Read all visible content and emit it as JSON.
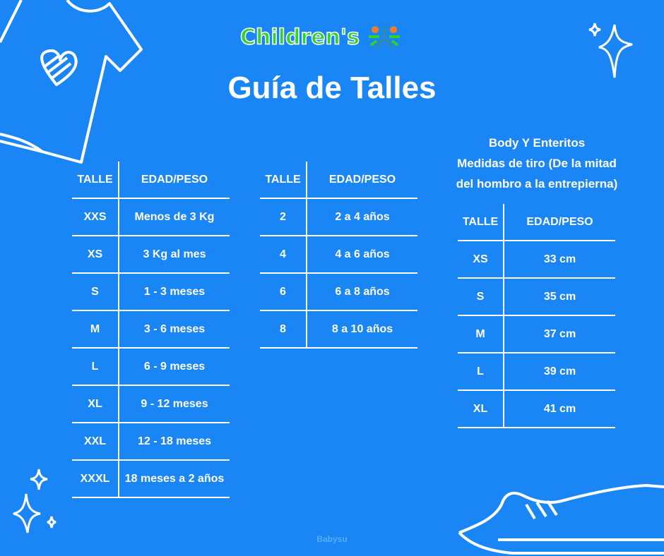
{
  "logo": {
    "text": "Children's"
  },
  "title": "Guía de Talles",
  "table1": {
    "headers": [
      "TALLE",
      "EDAD/PESO"
    ],
    "rows": [
      [
        "XXS",
        "Menos de 3 Kg"
      ],
      [
        "XS",
        "3 Kg al mes"
      ],
      [
        "S",
        "1 - 3 meses"
      ],
      [
        "M",
        "3 - 6 meses"
      ],
      [
        "L",
        "6 - 9 meses"
      ],
      [
        "XL",
        "9 - 12 meses"
      ],
      [
        "XXL",
        "12 - 18 meses"
      ],
      [
        "XXXL",
        "18 meses a 2 años"
      ]
    ]
  },
  "table2": {
    "headers": [
      "TALLE",
      "EDAD/PESO"
    ],
    "rows": [
      [
        "2",
        "2 a 4 años"
      ],
      [
        "4",
        "4 a 6 años"
      ],
      [
        "6",
        "6 a 8 años"
      ],
      [
        "8",
        "8 a 10 años"
      ]
    ]
  },
  "table3": {
    "caption": [
      "Body Y Enteritos",
      "Medidas de tiro (De la mitad",
      "del hombro a la entrepierna)"
    ],
    "headers": [
      "TALLE",
      "EDAD/PESO"
    ],
    "rows": [
      [
        "XS",
        "33 cm"
      ],
      [
        "S",
        "35 cm"
      ],
      [
        "M",
        "37 cm"
      ],
      [
        "L",
        "39 cm"
      ],
      [
        "XL",
        "41 cm"
      ]
    ]
  },
  "footer": "Babysu",
  "colors": {
    "background": "#1a86f6",
    "logo_green": "#2fd12a",
    "foreground": "#ffffff"
  }
}
